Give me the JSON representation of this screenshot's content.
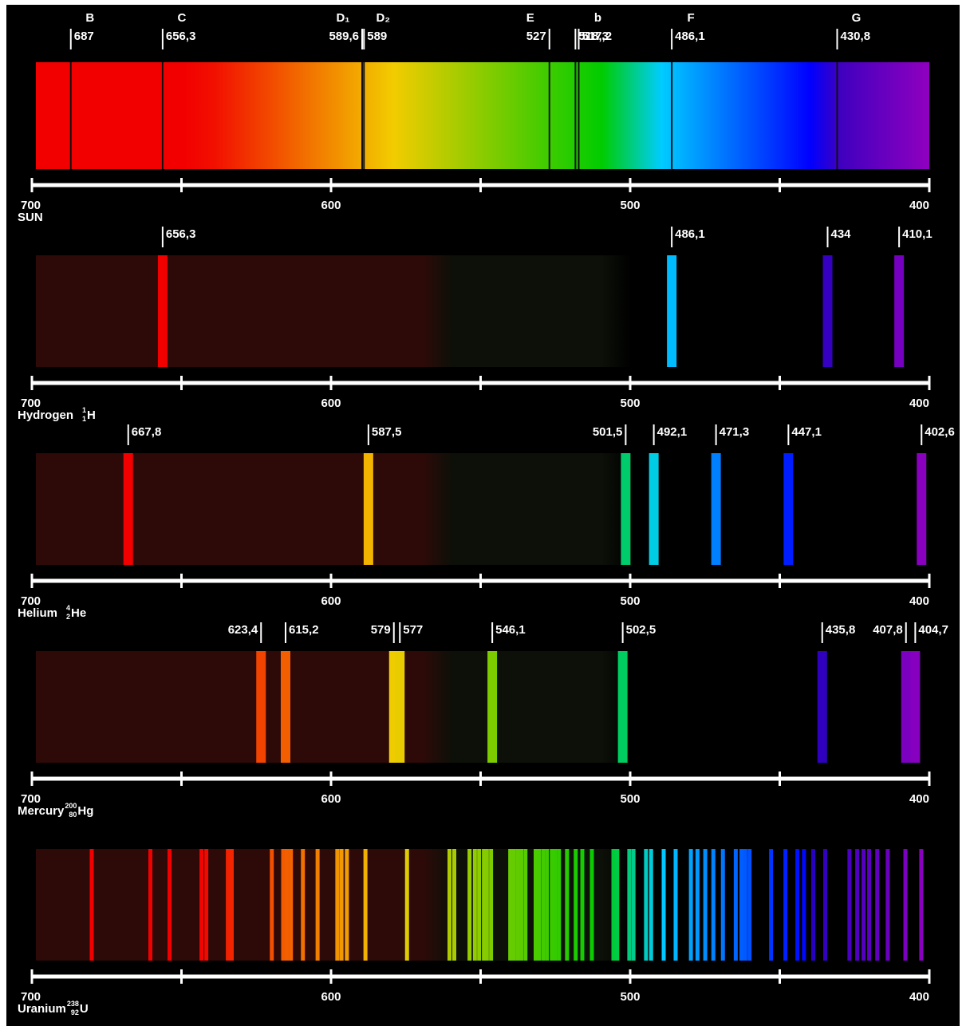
{
  "chart_data": [
    {
      "type": "absorption",
      "name": "SUN",
      "xlim": [
        700,
        400
      ],
      "xticks": [
        700,
        600,
        500,
        400
      ],
      "minor_xticks": [
        650,
        550,
        450
      ],
      "lines": [
        687,
        656.3,
        589.6,
        589,
        527,
        518.3,
        517.2,
        486.1,
        430.8
      ],
      "value_labels": [
        "687",
        "656,3",
        "589,6",
        "589",
        "527",
        "518,3",
        "517,2",
        "486,1",
        "430,8"
      ],
      "letters": [
        "B",
        "C",
        "D₁",
        "D₂",
        "E",
        null,
        "b",
        "F",
        "G"
      ]
    },
    {
      "type": "emission",
      "name": "Hydrogen",
      "isotope": {
        "mass": "1",
        "number": "1",
        "symbol": "H"
      },
      "xlim": [
        700,
        400
      ],
      "xticks": [
        700,
        600,
        500,
        400
      ],
      "minor_xticks": [
        650,
        550,
        450
      ],
      "lines": [
        656.3,
        486.1,
        434,
        410.1
      ],
      "value_labels": [
        "656,3",
        "486,1",
        "434",
        "410,1"
      ]
    },
    {
      "type": "emission",
      "name": "Helium",
      "isotope": {
        "mass": "4",
        "number": "2",
        "symbol": "He"
      },
      "xlim": [
        700,
        400
      ],
      "xticks": [
        700,
        600,
        500,
        400
      ],
      "minor_xticks": [
        650,
        550,
        450
      ],
      "lines": [
        667.8,
        587.5,
        501.5,
        492.1,
        471.3,
        447.1,
        402.6
      ],
      "value_labels": [
        "667,8",
        "587,5",
        "501,5",
        "492,1",
        "471,3",
        "447,1",
        "402,6"
      ]
    },
    {
      "type": "emission",
      "name": "Mercury",
      "isotope": {
        "mass": "200",
        "number": "80",
        "symbol": "Hg"
      },
      "xlim": [
        700,
        400
      ],
      "xticks": [
        700,
        600,
        500,
        400
      ],
      "minor_xticks": [
        650,
        550,
        450
      ],
      "lines": [
        623.4,
        615.2,
        579,
        577,
        546.1,
        502.5,
        435.8,
        407.8,
        404.7
      ],
      "value_labels": [
        "623,4",
        "615,2",
        "579",
        "577",
        "546,1",
        "502,5",
        "435,8",
        "407,8",
        "404,7"
      ]
    },
    {
      "type": "emission",
      "name": "Uranium",
      "isotope": {
        "mass": "238",
        "number": "92",
        "symbol": "U"
      },
      "xlim": [
        700,
        400
      ],
      "xticks": [
        700,
        600,
        500,
        400
      ],
      "minor_xticks": [
        650,
        550,
        450
      ],
      "lines": [
        680,
        660.4,
        654,
        643.3,
        641.7,
        634.5,
        633.2,
        619.8,
        616,
        614.7,
        613.4,
        609.4,
        604.5,
        597.9,
        596.5,
        594.7,
        588.5,
        574.6,
        560.4,
        558.8,
        553.7,
        551.9,
        550.5,
        548.9,
        547.9,
        546.5,
        540.1,
        539,
        537.7,
        536.4,
        535,
        531.6,
        530.5,
        529.1,
        527.8,
        526.2,
        525.1,
        523.8,
        521.1,
        518.2,
        516,
        512.8,
        505.6,
        504.3,
        500.3,
        498.9,
        494.7,
        493,
        488.8,
        484.8,
        479.7,
        477.5,
        474.9,
        472.2,
        469,
        464.7,
        462.8,
        461.5,
        460.1,
        452.9,
        448.1,
        444.1,
        441.9,
        438.8,
        434.8,
        426.7,
        424.1,
        422,
        420.1,
        417.4,
        413.9,
        408,
        402.7
      ]
    }
  ]
}
